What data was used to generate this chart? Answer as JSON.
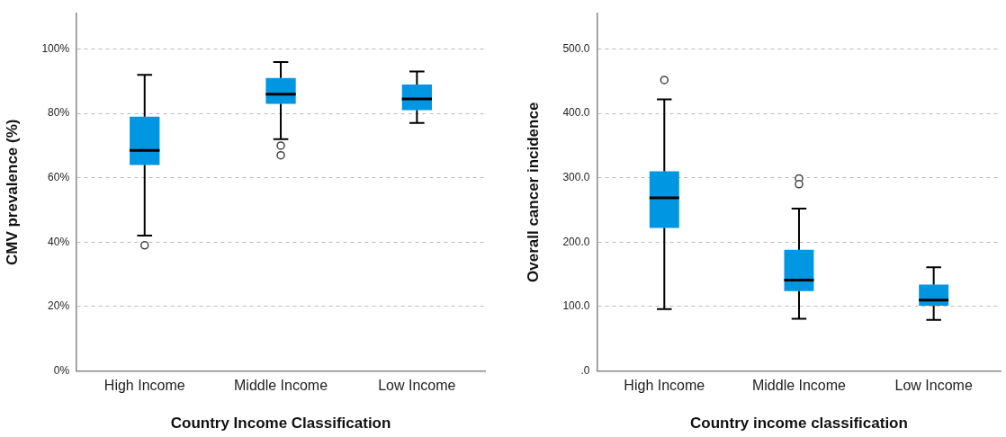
{
  "chart_data": [
    {
      "type": "box",
      "xlabel": "Country Income Classification",
      "ylabel": "CMV prevalence (%)",
      "categories": [
        "High Income",
        "Middle Income",
        "Low Income"
      ],
      "color": "#0096e1",
      "ylim": [
        0,
        111
      ],
      "yticks": [
        {
          "value": 0,
          "label": "0%"
        },
        {
          "value": 20,
          "label": "20%"
        },
        {
          "value": 40,
          "label": "40%"
        },
        {
          "value": 60,
          "label": "60%"
        },
        {
          "value": 80,
          "label": "80%"
        },
        {
          "value": 100,
          "label": "100%"
        }
      ],
      "grid": "y",
      "boxes": [
        {
          "low": 42,
          "q1": 64,
          "median": 68.5,
          "q3": 79,
          "high": 92,
          "outliers": [
            39
          ]
        },
        {
          "low": 72,
          "q1": 83,
          "median": 86,
          "q3": 91,
          "high": 96,
          "outliers": [
            70,
            67
          ]
        },
        {
          "low": 77,
          "q1": 81,
          "median": 84.5,
          "q3": 89,
          "high": 93
        }
      ]
    },
    {
      "type": "box",
      "xlabel": "Country income classification",
      "ylabel": "Overall cancer incidence",
      "categories": [
        "High Income",
        "Middle Income",
        "Low Income"
      ],
      "color": "#0096e1",
      "ylim": [
        0,
        555
      ],
      "yticks": [
        {
          "value": 0,
          "label": ".0"
        },
        {
          "value": 100,
          "label": "100.0"
        },
        {
          "value": 200,
          "label": "200.0"
        },
        {
          "value": 300,
          "label": "300.0"
        },
        {
          "value": 400,
          "label": "400.0"
        },
        {
          "value": 500,
          "label": "500.0"
        }
      ],
      "grid": "y",
      "boxes": [
        {
          "low": 96,
          "q1": 222,
          "median": 269,
          "q3": 310,
          "high": 422,
          "outliers": [
            452
          ]
        },
        {
          "low": 81,
          "q1": 124,
          "median": 141,
          "q3": 188,
          "high": 252,
          "outliers": [
            299,
            290
          ]
        },
        {
          "low": 79,
          "q1": 101,
          "median": 110,
          "q3": 134,
          "high": 161
        }
      ]
    }
  ]
}
